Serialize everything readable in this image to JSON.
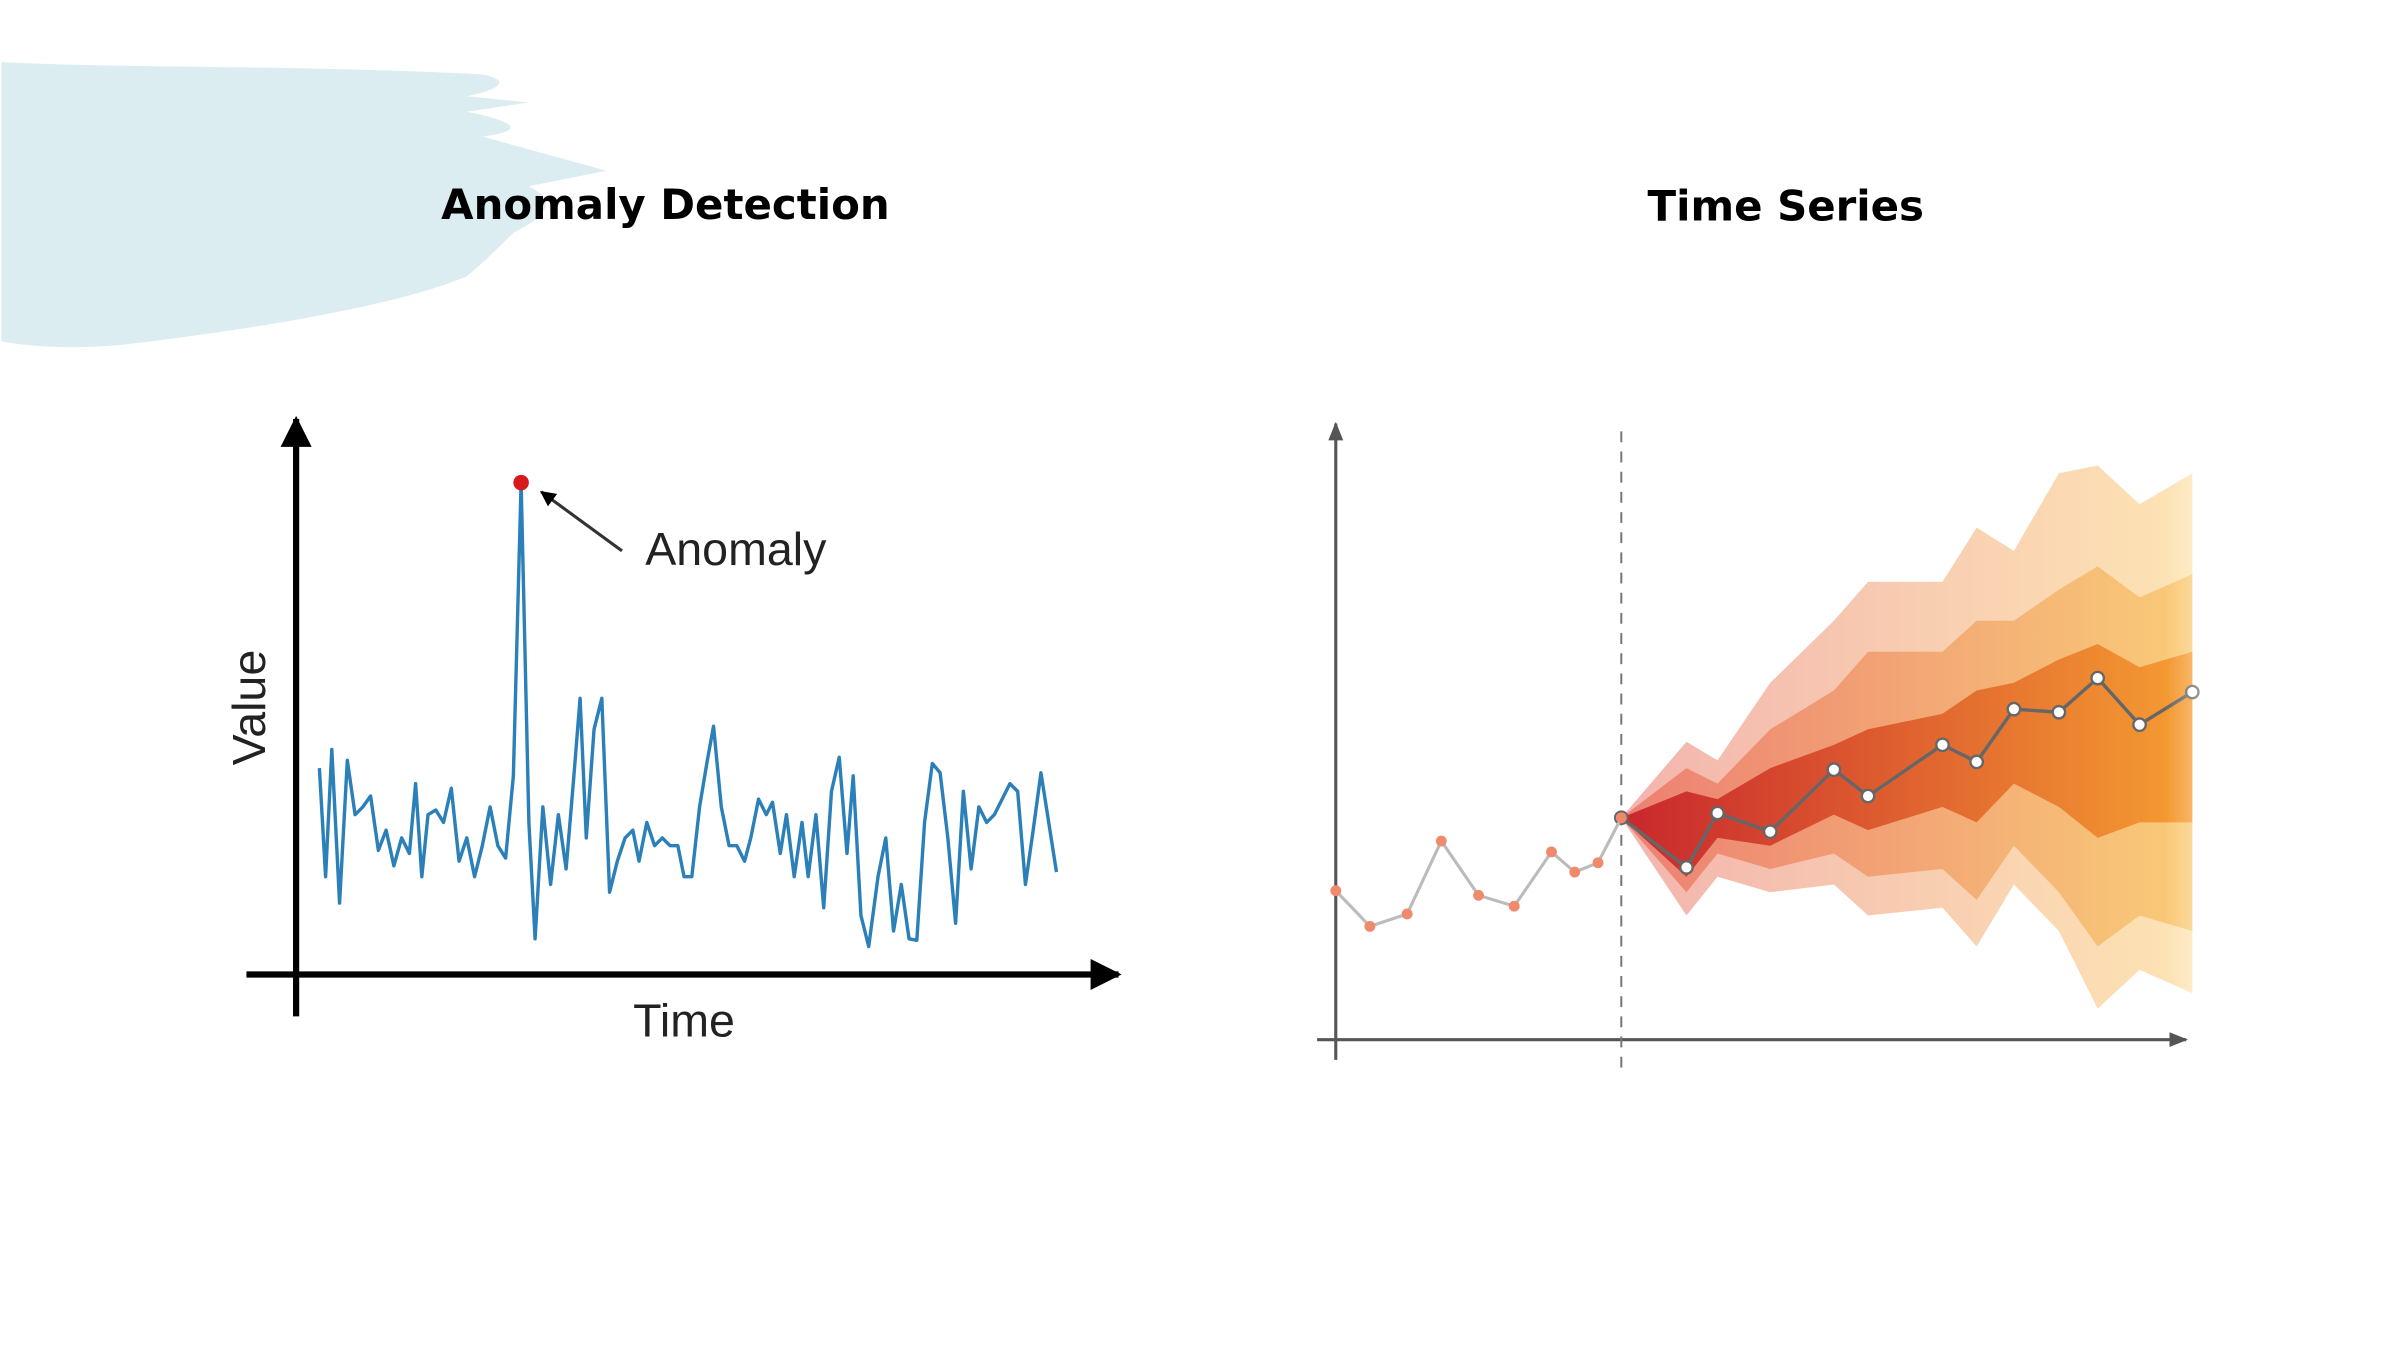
{
  "chart_data": [
    {
      "type": "line",
      "title": "Anomaly Detection",
      "xlabel": "Time",
      "ylabel": "Value",
      "annotation": "Anomaly",
      "anomaly_index": 27,
      "color": "#2b80b9",
      "anomaly_color": "#d7191c",
      "xlim": [
        0,
        530
      ],
      "ylim": [
        0,
        358
      ],
      "x": [
        15,
        19,
        23,
        28,
        33,
        38,
        43,
        48,
        53,
        58,
        63,
        68,
        73,
        77,
        81,
        85,
        90,
        95,
        100,
        105,
        110,
        115,
        120,
        125,
        130,
        135,
        140,
        145,
        150,
        154,
        159,
        164,
        169,
        174,
        179,
        183,
        187,
        192,
        197,
        202,
        207,
        212,
        217,
        221,
        226,
        231,
        236,
        241,
        246,
        250,
        255,
        260,
        265,
        269,
        274,
        279,
        284,
        289,
        293,
        298,
        303,
        307,
        312,
        316,
        321,
        326,
        330,
        335,
        340,
        345,
        350,
        355,
        359,
        364,
        369,
        375,
        380,
        385,
        390,
        395,
        400,
        405,
        410,
        415,
        420,
        425,
        430,
        435,
        440,
        445,
        450,
        455,
        460,
        465,
        470,
        475,
        480,
        485,
        490
      ],
      "values": [
        133,
        63,
        145,
        46,
        138,
        103,
        108,
        115,
        80,
        93,
        70,
        88,
        78,
        123,
        63,
        103,
        106,
        98,
        120,
        73,
        88,
        63,
        83,
        108,
        83,
        75,
        128,
        317,
        98,
        23,
        108,
        58,
        103,
        68,
        128,
        178,
        88,
        158,
        178,
        53,
        73,
        88,
        93,
        73,
        98,
        83,
        88,
        83,
        83,
        63,
        63,
        108,
        138,
        160,
        108,
        83,
        83,
        73,
        88,
        113,
        103,
        111,
        78,
        103,
        63,
        98,
        63,
        103,
        43,
        118,
        140,
        78,
        128,
        38,
        18,
        63,
        88,
        28,
        58,
        23,
        22,
        98,
        136,
        130,
        88,
        33,
        118,
        68,
        108,
        98,
        103,
        113,
        123,
        118,
        58,
        93,
        130,
        98,
        66
      ]
    },
    {
      "type": "fan",
      "title": "Time Series",
      "xlim": [
        0,
        548
      ],
      "ylim": [
        0,
        398
      ],
      "split_x": 184,
      "history": {
        "color": "#f08a6c",
        "line_color": "#bbbbbb",
        "x": [
          0,
          22,
          46,
          68,
          92,
          115,
          139,
          154,
          169,
          184
        ],
        "values": [
          96,
          73,
          81,
          128,
          93,
          86,
          121,
          108,
          114,
          143
        ]
      },
      "forecast": {
        "color": "#666666",
        "x": [
          184,
          226,
          246,
          280,
          321,
          343,
          391,
          413,
          437,
          466,
          491,
          518,
          552
        ],
        "values": [
          143,
          111,
          146,
          134,
          174,
          157,
          190,
          179,
          213,
          211,
          233,
          203,
          224
        ]
      },
      "bands": [
        {
          "colors": [
            "#f3b4ae",
            "#fde4b4"
          ],
          "upper": [
            143,
            192,
            180,
            230,
            270,
            295,
            295,
            330,
            315,
            365,
            370,
            345,
            365
          ],
          "lower": [
            143,
            80,
            105,
            95,
            100,
            80,
            85,
            60,
            100,
            70,
            20,
            45,
            30
          ]
        },
        {
          "colors": [
            "#ec7f72",
            "#f9cc78"
          ],
          "upper": [
            143,
            175,
            165,
            200,
            225,
            250,
            250,
            270,
            270,
            290,
            305,
            285,
            300
          ],
          "lower": [
            143,
            95,
            120,
            110,
            120,
            105,
            110,
            90,
            125,
            95,
            60,
            80,
            70
          ]
        },
        {
          "colors": [
            "#c9262d",
            "#f59d32"
          ],
          "upper": [
            143,
            160,
            155,
            175,
            190,
            200,
            210,
            225,
            230,
            245,
            255,
            240,
            250
          ],
          "lower": [
            143,
            105,
            130,
            125,
            145,
            135,
            150,
            140,
            165,
            150,
            130,
            140,
            140
          ]
        }
      ]
    }
  ]
}
